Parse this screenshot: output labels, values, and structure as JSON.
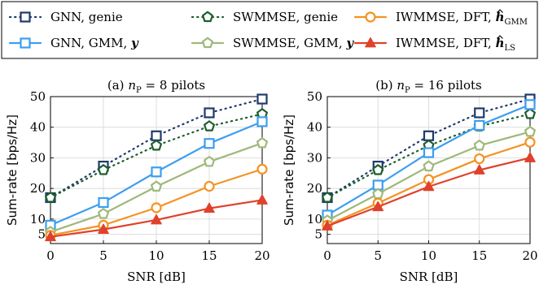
{
  "legend": {
    "entries": [
      {
        "label": "GNN, genie",
        "series": "gnn_genie",
        "color": "#1f3a6b",
        "marker": "square",
        "dash": "dotted",
        "math": null
      },
      {
        "label": "SWMMSE, genie",
        "series": "swmmse_genie",
        "color": "#1d5e2c",
        "marker": "pentagon",
        "dash": "dotted",
        "math": null
      },
      {
        "label": "IWMMSE, DFT, ",
        "series": "iwmmse_dft_gmm",
        "color": "#f39322",
        "marker": "circle",
        "dash": "solid",
        "math": {
          "base": "h",
          "sub": "GMM"
        }
      },
      {
        "label": "GNN, GMM, ",
        "series": "gnn_gmm",
        "color": "#3d9ef0",
        "marker": "square",
        "dash": "solid",
        "math": {
          "base": "y",
          "sub": ""
        }
      },
      {
        "label": "SWMMSE, GMM, ",
        "series": "swmmse_gmm",
        "color": "#9fb87a",
        "marker": "pentagon",
        "dash": "solid",
        "math": {
          "base": "y",
          "sub": ""
        }
      },
      {
        "label": "IWMMSE, DFT, ",
        "series": "iwmmse_dft_ls",
        "color": "#e0412b",
        "marker": "triangle",
        "dash": "solid",
        "math": {
          "base": "h",
          "sub": "LS"
        }
      }
    ]
  },
  "chart_data": [
    {
      "type": "line",
      "title_prefix": "(a) ",
      "title_var": "n",
      "title_sub": "P",
      "title_suffix": " = 8 pilots",
      "xlabel": "SNR [dB]",
      "ylabel": "Sum-rate [bps/Hz]",
      "x": [
        0,
        5,
        10,
        15,
        20
      ],
      "xticks": [
        0,
        5,
        10,
        15,
        20
      ],
      "yticks": [
        5,
        10,
        20,
        30,
        40,
        50
      ],
      "xlim": [
        0,
        20
      ],
      "ylim": [
        2,
        50
      ],
      "grid": true,
      "series": [
        {
          "name": "GNN, genie",
          "key": "gnn_genie",
          "values": [
            17.0,
            27.3,
            37.2,
            44.7,
            49.2
          ]
        },
        {
          "name": "SWMMSE, genie",
          "key": "swmmse_genie",
          "values": [
            17.0,
            26.0,
            34.0,
            40.3,
            44.3
          ]
        },
        {
          "name": "GNN, GMM, y",
          "key": "gnn_gmm",
          "values": [
            8.0,
            15.4,
            25.4,
            34.7,
            41.8
          ]
        },
        {
          "name": "SWMMSE, GMM, y",
          "key": "swmmse_gmm",
          "values": [
            5.8,
            11.7,
            20.6,
            28.7,
            34.8
          ]
        },
        {
          "name": "IWMMSE, DFT, h_GMM",
          "key": "iwmmse_dft_gmm",
          "values": [
            4.7,
            8.0,
            13.7,
            20.7,
            26.3
          ]
        },
        {
          "name": "IWMMSE, DFT, h_LS",
          "key": "iwmmse_dft_ls",
          "values": [
            4.2,
            6.6,
            9.7,
            13.5,
            16.2
          ]
        }
      ]
    },
    {
      "type": "line",
      "title_prefix": "(b) ",
      "title_var": "n",
      "title_sub": "P",
      "title_suffix": " = 16 pilots",
      "xlabel": "SNR [dB]",
      "ylabel": "Sum-rate [bps/Hz]",
      "x": [
        0,
        5,
        10,
        15,
        20
      ],
      "xticks": [
        0,
        5,
        10,
        15,
        20
      ],
      "yticks": [
        5,
        10,
        20,
        30,
        40,
        50
      ],
      "xlim": [
        0,
        20
      ],
      "ylim": [
        2,
        50
      ],
      "grid": true,
      "series": [
        {
          "name": "GNN, genie",
          "key": "gnn_genie",
          "values": [
            17.0,
            27.3,
            37.2,
            44.7,
            49.2
          ]
        },
        {
          "name": "SWMMSE, genie",
          "key": "swmmse_genie",
          "values": [
            17.0,
            26.0,
            34.0,
            40.3,
            44.3
          ]
        },
        {
          "name": "GNN, GMM, y",
          "key": "gnn_gmm",
          "values": [
            11.3,
            21.1,
            31.7,
            40.6,
            47.4
          ]
        },
        {
          "name": "SWMMSE, GMM, y",
          "key": "swmmse_gmm",
          "values": [
            9.5,
            18.2,
            27.2,
            34.0,
            38.5
          ]
        },
        {
          "name": "IWMMSE, DFT, h_GMM",
          "key": "iwmmse_dft_gmm",
          "values": [
            8.0,
            15.2,
            22.9,
            29.7,
            35.1
          ]
        },
        {
          "name": "IWMMSE, DFT, h_LS",
          "key": "iwmmse_dft_ls",
          "values": [
            7.7,
            14.0,
            20.6,
            26.0,
            30.0
          ]
        }
      ]
    }
  ]
}
